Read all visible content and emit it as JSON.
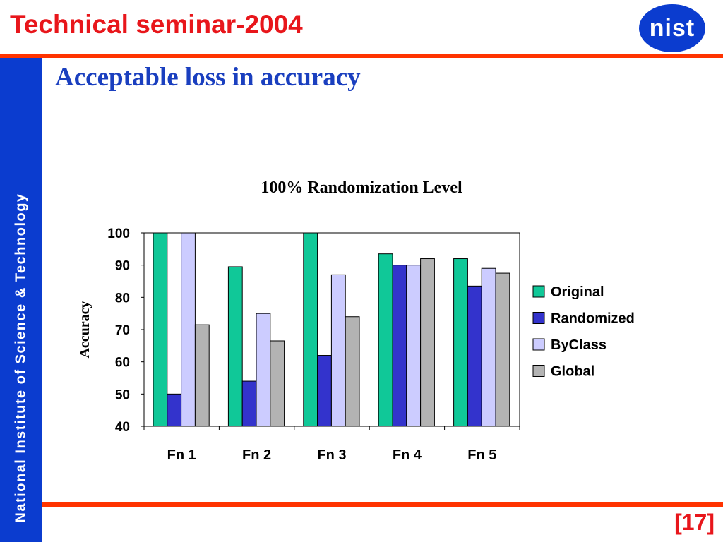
{
  "slide": {
    "title": "Technical seminar-2004",
    "subtitle": "Acceptable loss in accuracy",
    "sidebar_text": "National Institute of Science & Technology",
    "logo_text": "nist",
    "page_number": "[17]"
  },
  "colors": {
    "title": "#e8161b",
    "rule": "#ff3300",
    "sidebar": "#0b3ccf",
    "subtitle": "#1a3fbf"
  },
  "chart_data": {
    "type": "bar",
    "title": "100% Randomization Level",
    "xlabel": "",
    "ylabel": "Accuracy",
    "categories": [
      "Fn 1",
      "Fn 2",
      "Fn 3",
      "Fn 4",
      "Fn 5"
    ],
    "series": [
      {
        "name": "Original",
        "color": "#10c898",
        "values": [
          100,
          89.5,
          100,
          93.5,
          92
        ]
      },
      {
        "name": "Randomized",
        "color": "#3333cc",
        "values": [
          50,
          54,
          62,
          90,
          83.5
        ]
      },
      {
        "name": "ByClass",
        "color": "#ccccff",
        "values": [
          100,
          75,
          87,
          90,
          89
        ]
      },
      {
        "name": "Global",
        "color": "#b3b3b3",
        "values": [
          71.5,
          66.5,
          74,
          92,
          87.5
        ]
      }
    ],
    "ylim": [
      40,
      100
    ],
    "yticks": [
      100,
      90,
      80,
      70,
      60,
      50,
      40
    ],
    "grid": false,
    "legend_position": "right"
  }
}
